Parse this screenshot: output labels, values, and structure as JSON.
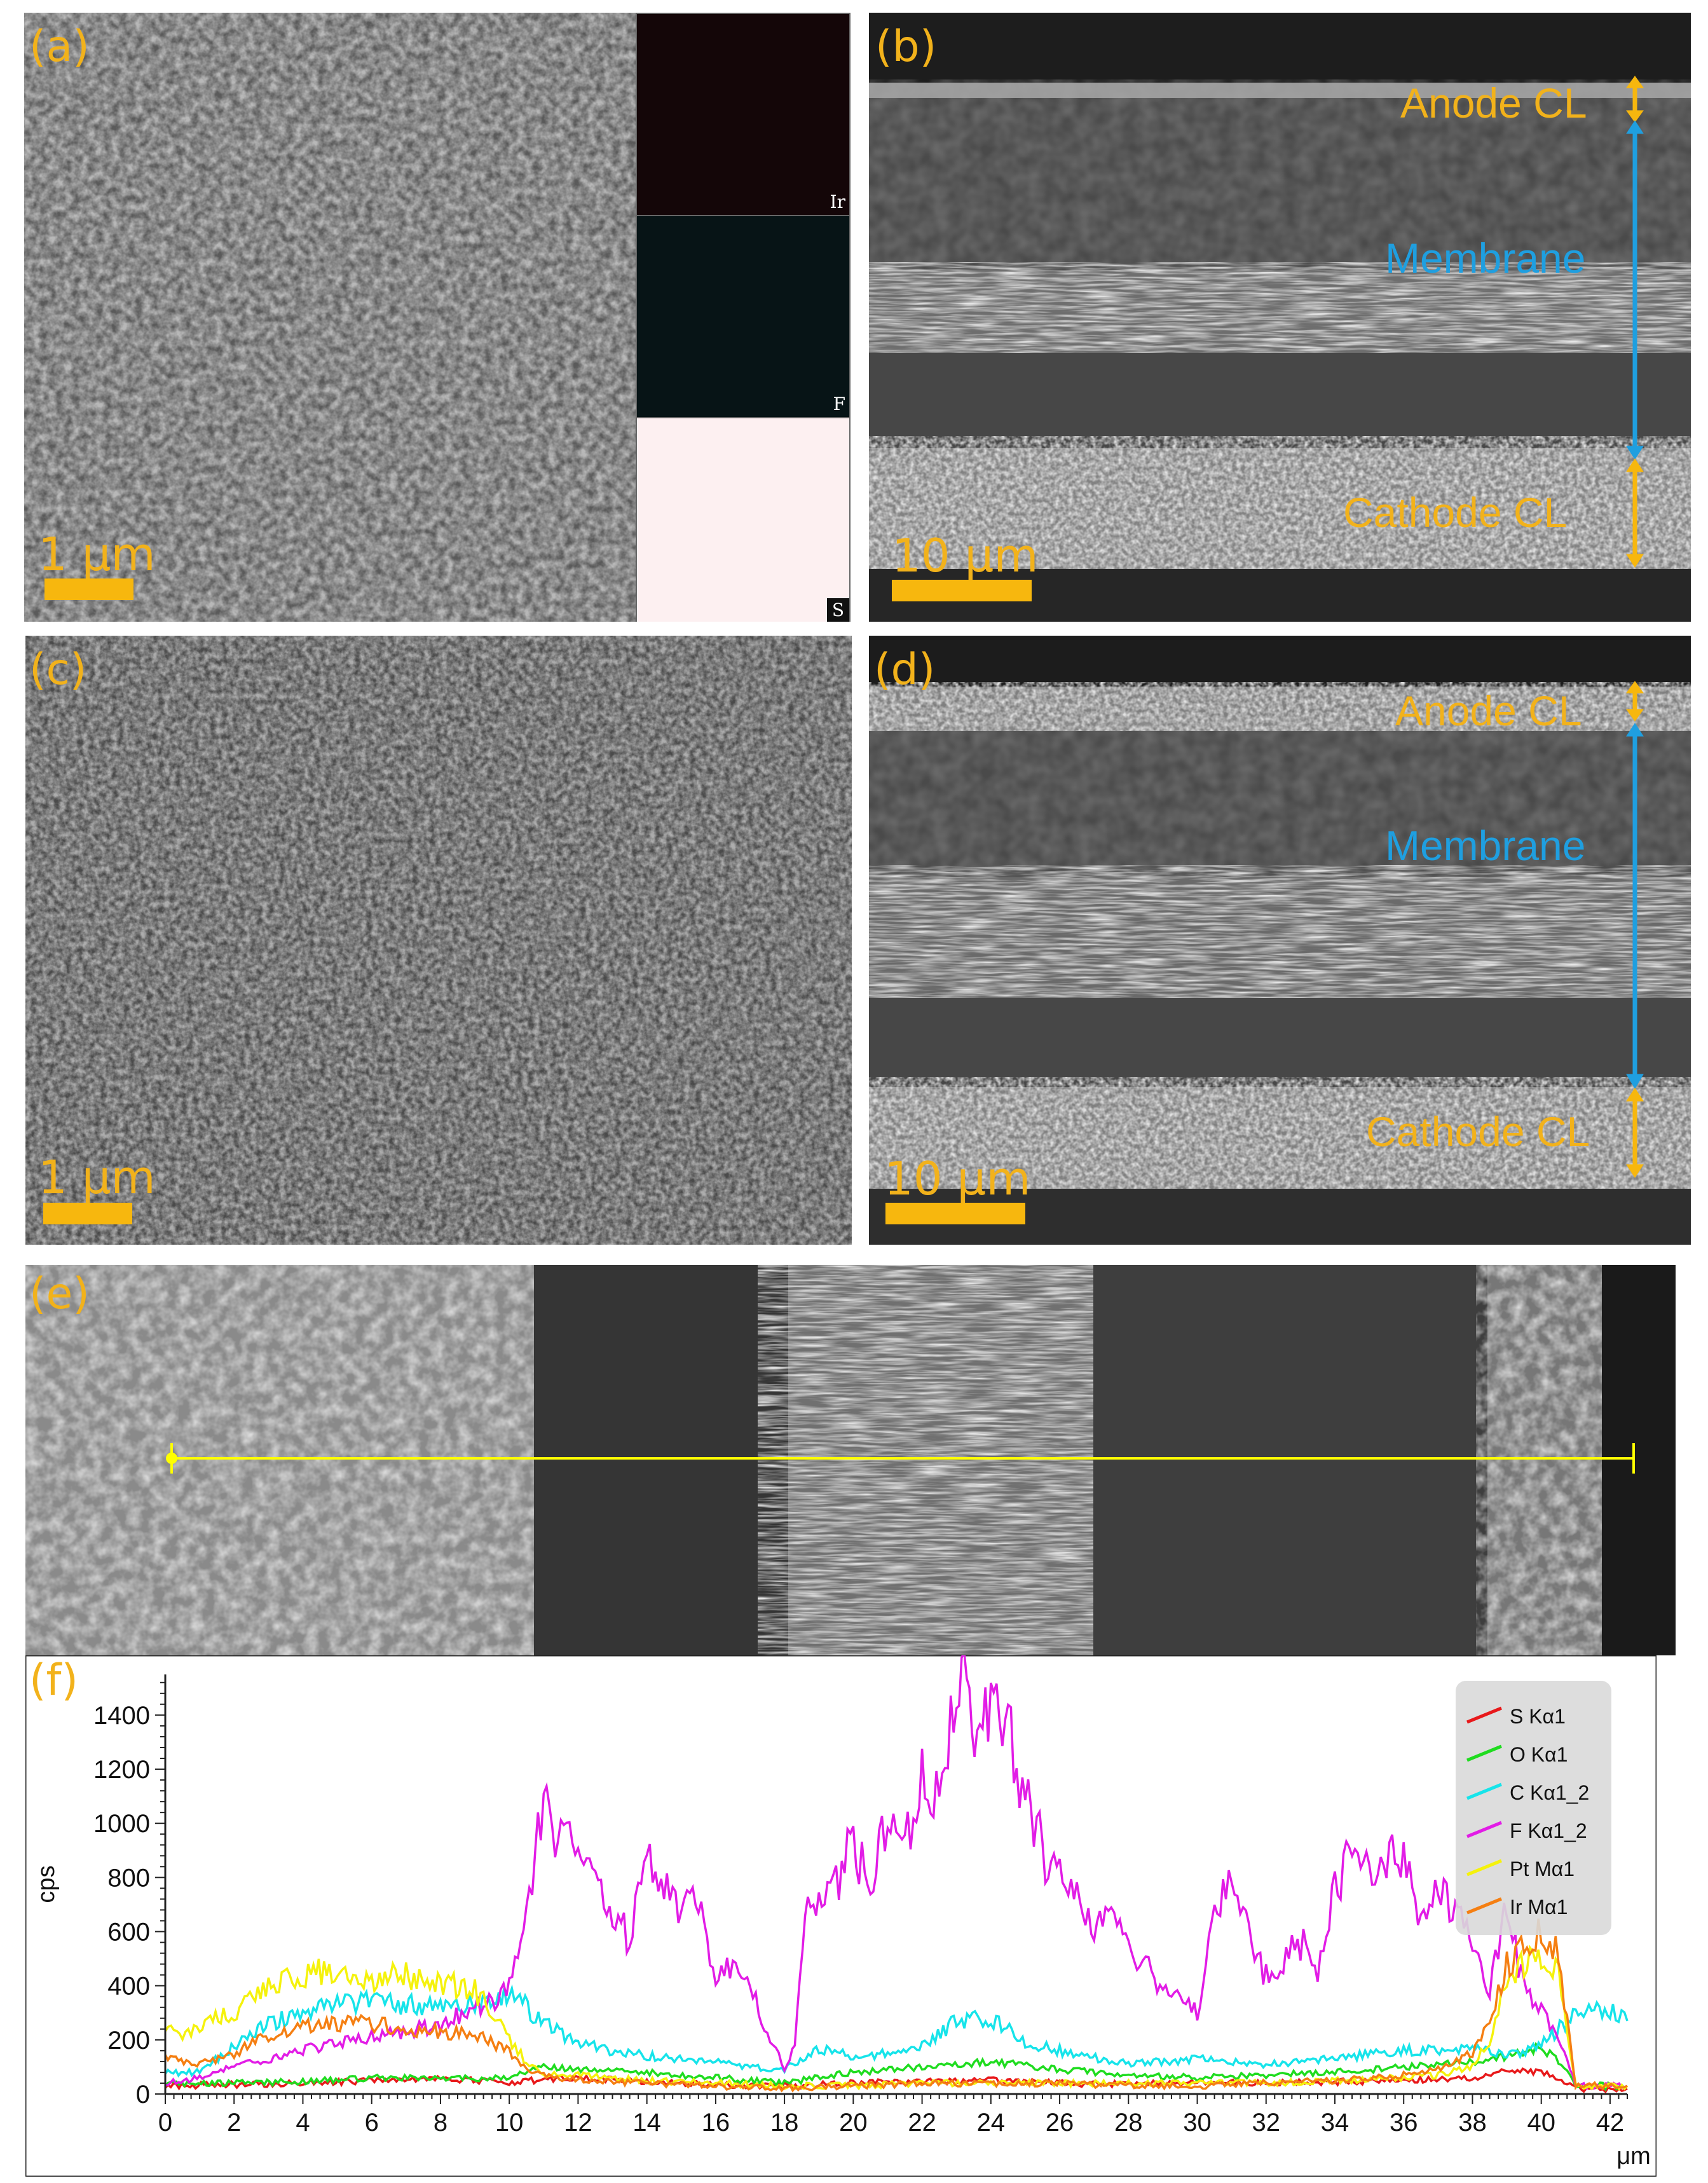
{
  "panels": {
    "a": {
      "label": "(a)",
      "scale": "1 μm",
      "eds": [
        "Ir",
        "F",
        "S"
      ]
    },
    "b": {
      "label": "(b)",
      "scale": "10 μm",
      "layers": [
        "Anode CL",
        "Membrane",
        "Cathode CL"
      ]
    },
    "c": {
      "label": "(c)",
      "scale": "1 μm"
    },
    "d": {
      "label": "(d)",
      "scale": "10 μm",
      "layers": [
        "Anode CL",
        "Membrane",
        "Cathode CL"
      ]
    },
    "e": {
      "label": "(e)"
    },
    "f": {
      "label": "(f)"
    }
  },
  "colors": {
    "label": "#f2b21b",
    "membrane": "#1f9fe0",
    "scanline": "#ffff00"
  },
  "chart_data": {
    "type": "line",
    "xlabel": "μm",
    "ylabel": "cps",
    "xlim": [
      0,
      42.5
    ],
    "ylim": [
      0,
      1550
    ],
    "xticks": [
      0,
      2,
      4,
      6,
      8,
      10,
      12,
      14,
      16,
      18,
      20,
      22,
      24,
      26,
      28,
      30,
      32,
      34,
      36,
      38,
      40,
      42
    ],
    "yticks": [
      0,
      200,
      400,
      600,
      800,
      1000,
      1200,
      1400
    ],
    "legend_position": "top-right",
    "series": [
      {
        "name": "S Kα1",
        "color": "#e8191b",
        "x": [
          0,
          2,
          4,
          6,
          8,
          10,
          12,
          14,
          16,
          18,
          20,
          22,
          24,
          26,
          28,
          30,
          32,
          34,
          36,
          38,
          39,
          40,
          40.5,
          41,
          42.5
        ],
        "y": [
          30,
          35,
          40,
          50,
          55,
          45,
          60,
          45,
          35,
          30,
          40,
          45,
          50,
          40,
          35,
          45,
          40,
          45,
          50,
          60,
          90,
          80,
          60,
          20,
          20
        ]
      },
      {
        "name": "O Kα1",
        "color": "#1fdc1f",
        "x": [
          0,
          2,
          4,
          6,
          8,
          10,
          11,
          12,
          14,
          16,
          18,
          20,
          22,
          24,
          26,
          28,
          30,
          32,
          34,
          36,
          38,
          39,
          40,
          40.5,
          41,
          42.5
        ],
        "y": [
          40,
          40,
          45,
          60,
          55,
          60,
          100,
          90,
          80,
          60,
          40,
          80,
          100,
          120,
          90,
          70,
          60,
          70,
          80,
          100,
          120,
          140,
          170,
          120,
          30,
          30
        ]
      },
      {
        "name": "C Kα1_2",
        "color": "#16e4ea",
        "x": [
          0,
          1,
          2,
          3,
          4,
          5,
          6,
          7,
          8,
          9,
          10,
          11,
          12,
          13,
          14,
          16,
          17,
          18,
          19,
          20,
          21,
          22,
          23,
          24,
          25,
          26,
          28,
          30,
          32,
          34,
          36,
          38,
          39,
          40,
          41,
          42,
          42.5
        ],
        "y": [
          80,
          80,
          180,
          260,
          300,
          330,
          340,
          330,
          320,
          340,
          380,
          260,
          190,
          160,
          140,
          120,
          100,
          90,
          170,
          140,
          150,
          180,
          270,
          280,
          190,
          160,
          110,
          130,
          110,
          130,
          160,
          170,
          140,
          180,
          300,
          310,
          270
        ]
      },
      {
        "name": "F Kα1_2",
        "color": "#e21ce6",
        "x": [
          0,
          1,
          2,
          3,
          4,
          5,
          6,
          7,
          8,
          9,
          9.5,
          10,
          10.5,
          11,
          11.5,
          12,
          12.5,
          13,
          13.5,
          14,
          14.5,
          15,
          15.5,
          16,
          16.5,
          17,
          17.5,
          18,
          18.3,
          18.6,
          19,
          19.5,
          20,
          20.5,
          21,
          21.5,
          22,
          22.5,
          23,
          23.3,
          23.6,
          24,
          24.5,
          25,
          25.5,
          26,
          26.5,
          27,
          27.5,
          28,
          28.5,
          29,
          29.5,
          30,
          30.5,
          31,
          31.5,
          32,
          32.5,
          33,
          33.5,
          34,
          34.5,
          35,
          35.5,
          36,
          36.5,
          37,
          37.5,
          38,
          38.5,
          39,
          39.5,
          40,
          40.5,
          41,
          42.5
        ],
        "y": [
          40,
          60,
          100,
          130,
          160,
          190,
          210,
          230,
          260,
          320,
          340,
          420,
          720,
          1050,
          950,
          880,
          800,
          700,
          550,
          900,
          750,
          700,
          740,
          430,
          480,
          400,
          230,
          90,
          180,
          700,
          680,
          790,
          920,
          800,
          1000,
          960,
          1150,
          1050,
          1450,
          1480,
          1360,
          1420,
          1350,
          1100,
          900,
          780,
          800,
          580,
          700,
          560,
          480,
          380,
          380,
          290,
          720,
          800,
          590,
          430,
          500,
          560,
          470,
          760,
          870,
          820,
          870,
          880,
          660,
          780,
          690,
          520,
          400,
          700,
          380,
          310,
          200,
          30,
          30
        ]
      },
      {
        "name": "Pt Mα1",
        "color": "#f5f20c",
        "x": [
          0,
          0.5,
          1,
          2,
          3,
          4,
          5,
          6,
          7,
          8,
          9,
          9.5,
          10,
          10.5,
          11,
          12,
          13,
          14,
          16,
          18,
          20,
          22,
          24,
          26,
          28,
          30,
          32,
          34,
          36,
          37,
          38,
          38.5,
          39,
          39.5,
          40,
          40.5,
          41,
          42.5
        ],
        "y": [
          260,
          220,
          250,
          300,
          400,
          430,
          470,
          420,
          440,
          410,
          380,
          300,
          200,
          120,
          70,
          70,
          60,
          50,
          40,
          30,
          30,
          40,
          40,
          40,
          40,
          40,
          40,
          50,
          60,
          70,
          100,
          200,
          420,
          480,
          520,
          470,
          30,
          30
        ]
      },
      {
        "name": "Ir Mα1",
        "color": "#f57f12",
        "x": [
          0,
          1,
          2,
          3,
          4,
          5,
          6,
          7,
          8,
          9,
          10,
          10.5,
          11,
          12,
          14,
          16,
          18,
          20,
          22,
          24,
          26,
          28,
          30,
          32,
          34,
          36,
          37,
          38,
          38.5,
          39,
          39.5,
          40,
          40.5,
          41,
          42.5
        ],
        "y": [
          130,
          110,
          150,
          220,
          250,
          260,
          260,
          240,
          230,
          220,
          160,
          90,
          70,
          50,
          40,
          30,
          20,
          30,
          40,
          40,
          40,
          30,
          30,
          40,
          50,
          70,
          90,
          150,
          280,
          480,
          560,
          590,
          520,
          30,
          30
        ]
      }
    ]
  }
}
